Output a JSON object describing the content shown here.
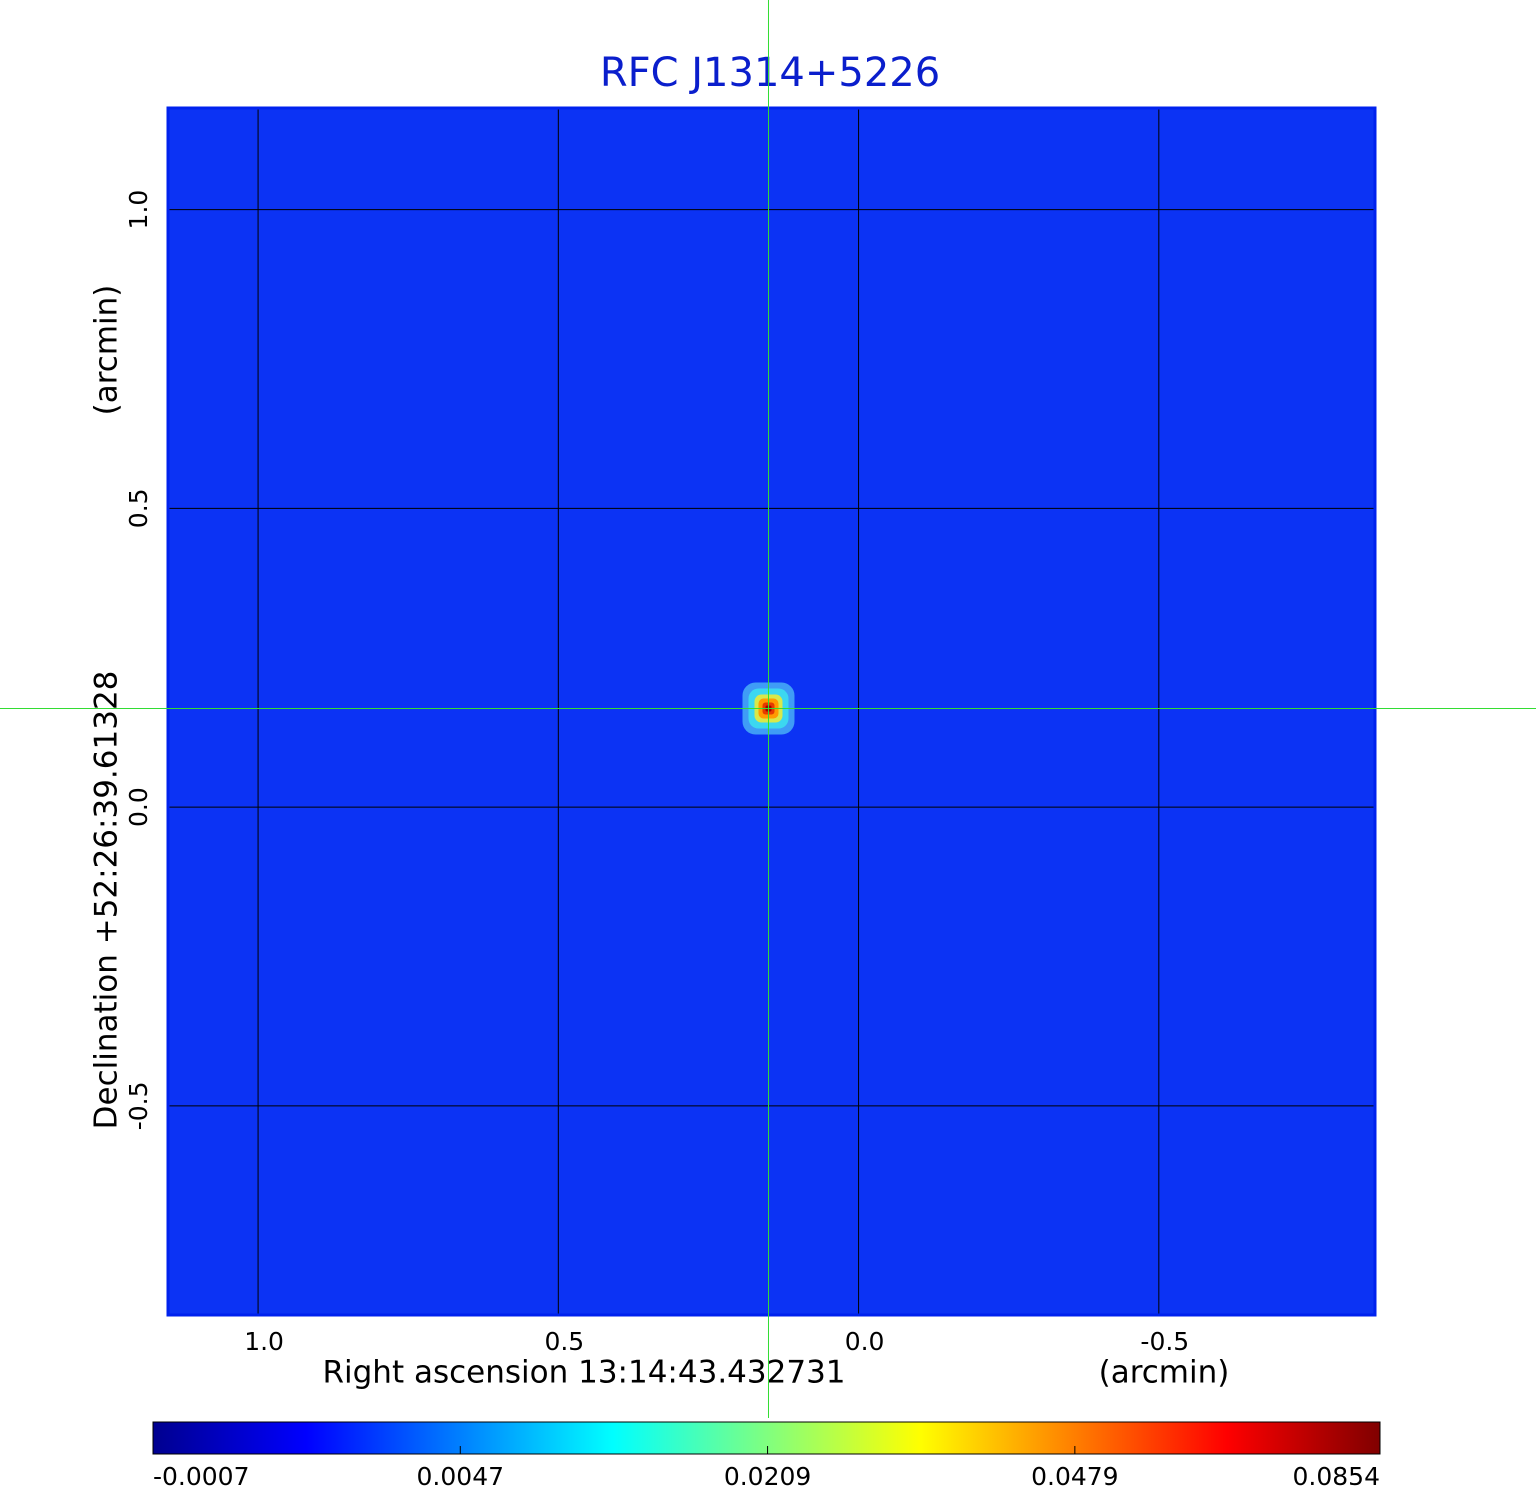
{
  "chart_data": {
    "type": "image",
    "title": "RFC J1314+5226",
    "x_label": "Right ascension  13:14:43.432731",
    "x_unit": "(arcmin)",
    "y_label": "Declination  +52:26:39.61328",
    "y_unit": "(arcmin)",
    "xlim": [
      1.15,
      -0.86
    ],
    "ylim": [
      -0.85,
      1.17
    ],
    "xticks": [
      {
        "value": 1,
        "label": "1.0"
      },
      {
        "value": 0.5,
        "label": "0.5"
      },
      {
        "value": 0,
        "label": "0.0"
      },
      {
        "value": -0.5,
        "label": "-0.5"
      }
    ],
    "yticks": [
      {
        "value": 1,
        "label": "1.0"
      },
      {
        "value": 0.5,
        "label": "0.5"
      },
      {
        "value": 0,
        "label": "0.0"
      },
      {
        "value": -0.5,
        "label": "-0.5"
      }
    ],
    "grid": true,
    "source": {
      "x": 0.15,
      "y": 0.165
    },
    "colorbar": {
      "scale": "sqrt",
      "lim": [
        -0.0007,
        0.0854
      ],
      "ticks": [
        -0.0007,
        0.0047,
        0.0209,
        0.0479,
        0.0854
      ]
    }
  }
}
